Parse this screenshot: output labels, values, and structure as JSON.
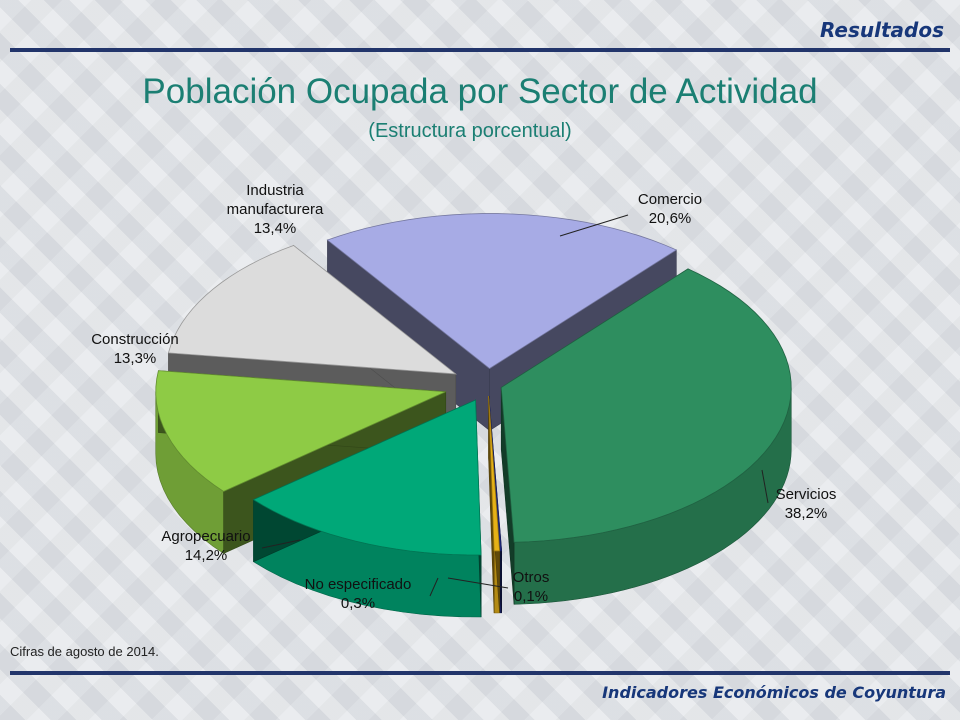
{
  "header": {
    "section": "Resultados",
    "footer": "Indicadores Económicos de Coyuntura"
  },
  "footnote": "Cifras de agosto de 2014.",
  "chart_data": {
    "type": "pie",
    "title": "Población Ocupada por Sector de Actividad",
    "subtitle": "(Estructura porcentual)",
    "unit": "%",
    "legend": "none",
    "slices": [
      {
        "name": "Comercio",
        "value": 20.6,
        "label": "20,6%",
        "color": "#a7abe5"
      },
      {
        "name": "Servicios",
        "value": 38.2,
        "label": "38,2%",
        "color": "#2e8e5f"
      },
      {
        "name": "Otros",
        "value": 0.1,
        "label": "0,1%",
        "color": "#1f2a80"
      },
      {
        "name": "No especificado",
        "value": 0.3,
        "label": "0,3%",
        "color": "#e6b117"
      },
      {
        "name": "Agropecuario",
        "value": 14.2,
        "label": "14,2%",
        "color": "#00a878"
      },
      {
        "name": "Construcción",
        "value": 13.3,
        "label": "13,3%",
        "color": "#8ecb45"
      },
      {
        "name": "Industria manufacturera",
        "value": 13.4,
        "label": "13,4%",
        "color": "#dcdcdc"
      }
    ],
    "label_lines": [
      {
        "slice": 0,
        "lines": [
          "Comercio",
          "20,6%"
        ]
      },
      {
        "slice": 1,
        "lines": [
          "Servicios",
          "38,2%"
        ]
      },
      {
        "slice": 2,
        "lines": [
          "Otros",
          "0,1%"
        ]
      },
      {
        "slice": 3,
        "lines": [
          "No especificado",
          "0,3%"
        ]
      },
      {
        "slice": 4,
        "lines": [
          "Agropecuario",
          "14,2%"
        ]
      },
      {
        "slice": 5,
        "lines": [
          "Construcción",
          "13,3%"
        ]
      },
      {
        "slice": 6,
        "lines": [
          "Industria",
          "manufacturera",
          "13,4%"
        ]
      }
    ]
  }
}
